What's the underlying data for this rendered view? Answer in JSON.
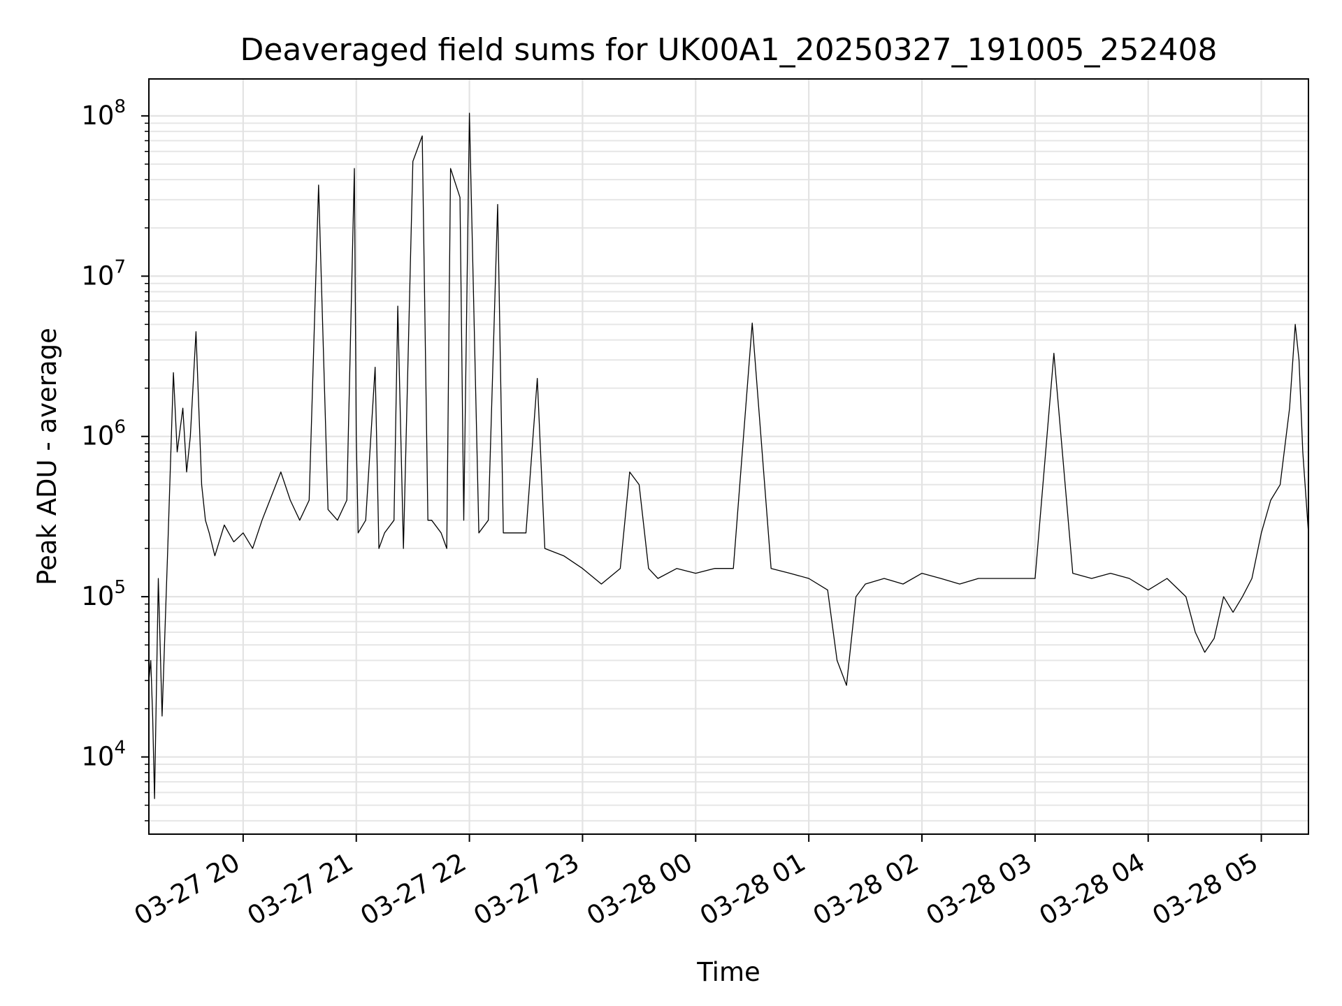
{
  "chart_data": {
    "type": "line",
    "title": "Deaveraged field sums for UK00A1_20250327_191005_252408",
    "xlabel": "Time",
    "ylabel": "Peak ADU - average",
    "yscale": "log",
    "ylim": [
      3300,
      170000000
    ],
    "xlim": [
      "2025-03-27 19:10",
      "2025-03-28 05:25"
    ],
    "grid": true,
    "legend": "none",
    "line_color": "#000000",
    "x_ticks": [
      {
        "value": "2025-03-27 20:00",
        "label": "03-27 20"
      },
      {
        "value": "2025-03-27 21:00",
        "label": "03-27 21"
      },
      {
        "value": "2025-03-27 22:00",
        "label": "03-27 22"
      },
      {
        "value": "2025-03-27 23:00",
        "label": "03-27 23"
      },
      {
        "value": "2025-03-28 00:00",
        "label": "03-28 00"
      },
      {
        "value": "2025-03-28 01:00",
        "label": "03-28 01"
      },
      {
        "value": "2025-03-28 02:00",
        "label": "03-28 02"
      },
      {
        "value": "2025-03-28 03:00",
        "label": "03-28 03"
      },
      {
        "value": "2025-03-28 04:00",
        "label": "03-28 04"
      },
      {
        "value": "2025-03-28 05:00",
        "label": "03-28 05"
      }
    ],
    "y_ticks": [
      {
        "value": 10000,
        "base": "10",
        "exp": "4"
      },
      {
        "value": 100000,
        "base": "10",
        "exp": "5"
      },
      {
        "value": 1000000,
        "base": "10",
        "exp": "6"
      },
      {
        "value": 10000000,
        "base": "10",
        "exp": "7"
      },
      {
        "value": 100000000,
        "base": "10",
        "exp": "8"
      }
    ],
    "series": [
      {
        "x": [
          "2025-03-27 19:10",
          "2025-03-27 19:11",
          "2025-03-27 19:12",
          "2025-03-27 19:13",
          "2025-03-27 19:15",
          "2025-03-27 19:17",
          "2025-03-27 19:20",
          "2025-03-27 19:23",
          "2025-03-27 19:25",
          "2025-03-27 19:28",
          "2025-03-27 19:30",
          "2025-03-27 19:32",
          "2025-03-27 19:35",
          "2025-03-27 19:38",
          "2025-03-27 19:40",
          "2025-03-27 19:42",
          "2025-03-27 19:45",
          "2025-03-27 19:50",
          "2025-03-27 19:55",
          "2025-03-27 20:00",
          "2025-03-27 20:05",
          "2025-03-27 20:10",
          "2025-03-27 20:20",
          "2025-03-27 20:25",
          "2025-03-27 20:30",
          "2025-03-27 20:35",
          "2025-03-27 20:40",
          "2025-03-27 20:45",
          "2025-03-27 20:50",
          "2025-03-27 20:55",
          "2025-03-27 20:59",
          "2025-03-27 21:00",
          "2025-03-27 21:01",
          "2025-03-27 21:05",
          "2025-03-27 21:10",
          "2025-03-27 21:12",
          "2025-03-27 21:15",
          "2025-03-27 21:20",
          "2025-03-27 21:22",
          "2025-03-27 21:25",
          "2025-03-27 21:30",
          "2025-03-27 21:35",
          "2025-03-27 21:38",
          "2025-03-27 21:40",
          "2025-03-27 21:45",
          "2025-03-27 21:48",
          "2025-03-27 21:50",
          "2025-03-27 21:55",
          "2025-03-27 21:57",
          "2025-03-27 22:00",
          "2025-03-27 22:05",
          "2025-03-27 22:10",
          "2025-03-27 22:15",
          "2025-03-27 22:18",
          "2025-03-27 22:20",
          "2025-03-27 22:30",
          "2025-03-27 22:36",
          "2025-03-27 22:40",
          "2025-03-27 22:50",
          "2025-03-27 23:00",
          "2025-03-27 23:10",
          "2025-03-27 23:20",
          "2025-03-27 23:25",
          "2025-03-27 23:30",
          "2025-03-27 23:35",
          "2025-03-27 23:40",
          "2025-03-27 23:50",
          "2025-03-28 00:00",
          "2025-03-28 00:10",
          "2025-03-28 00:20",
          "2025-03-28 00:30",
          "2025-03-28 00:40",
          "2025-03-28 00:50",
          "2025-03-28 01:00",
          "2025-03-28 01:10",
          "2025-03-28 01:15",
          "2025-03-28 01:20",
          "2025-03-28 01:25",
          "2025-03-28 01:30",
          "2025-03-28 01:40",
          "2025-03-28 01:50",
          "2025-03-28 02:00",
          "2025-03-28 02:10",
          "2025-03-28 02:20",
          "2025-03-28 02:30",
          "2025-03-28 02:40",
          "2025-03-28 02:50",
          "2025-03-28 03:00",
          "2025-03-28 03:10",
          "2025-03-28 03:20",
          "2025-03-28 03:30",
          "2025-03-28 03:40",
          "2025-03-28 03:50",
          "2025-03-28 04:00",
          "2025-03-28 04:10",
          "2025-03-28 04:20",
          "2025-03-28 04:25",
          "2025-03-28 04:30",
          "2025-03-28 04:35",
          "2025-03-28 04:40",
          "2025-03-28 04:45",
          "2025-03-28 04:50",
          "2025-03-28 04:55",
          "2025-03-28 05:00",
          "2025-03-28 05:05",
          "2025-03-28 05:10",
          "2025-03-28 05:15",
          "2025-03-28 05:18",
          "2025-03-28 05:20",
          "2025-03-28 05:22",
          "2025-03-28 05:25"
        ],
        "y": [
          30000,
          40000,
          18000,
          5500,
          130000,
          18000,
          200000,
          2500000,
          800000,
          1500000,
          600000,
          1000000,
          4500000,
          500000,
          300000,
          250000,
          180000,
          280000,
          220000,
          250000,
          200000,
          300000,
          600000,
          400000,
          300000,
          400000,
          37000000,
          350000,
          300000,
          400000,
          47000000,
          1000000,
          250000,
          300000,
          2700000,
          200000,
          250000,
          300000,
          6500000,
          200000,
          52000000,
          75000000,
          300000,
          300000,
          250000,
          200000,
          47000000,
          31000000,
          300000,
          104000000,
          250000,
          300000,
          28000000,
          250000,
          250000,
          250000,
          2300000,
          200000,
          180000,
          150000,
          120000,
          150000,
          600000,
          500000,
          150000,
          130000,
          150000,
          140000,
          150000,
          150000,
          5100000,
          150000,
          140000,
          130000,
          110000,
          40000,
          28000,
          100000,
          120000,
          130000,
          120000,
          140000,
          130000,
          120000,
          130000,
          130000,
          130000,
          130000,
          3300000,
          140000,
          130000,
          140000,
          130000,
          110000,
          130000,
          100000,
          60000,
          45000,
          55000,
          100000,
          80000,
          100000,
          130000,
          250000,
          400000,
          500000,
          1500000,
          5000000,
          3000000,
          800000,
          250000
        ]
      }
    ]
  }
}
